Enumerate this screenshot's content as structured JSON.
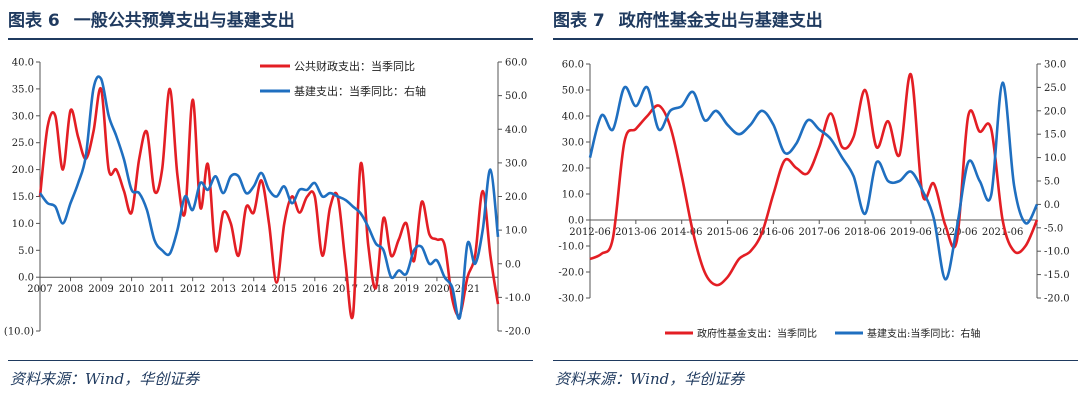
{
  "left": {
    "title_label": "图表 6",
    "title_text": "一般公共预算支出与基建支出",
    "source": "资料来源：Wind，华创证券"
  },
  "right": {
    "title_label": "图表 7",
    "title_text": "政府性基金支出与基建支出",
    "source": "资料来源：Wind，华创证券"
  },
  "chart_data": [
    {
      "type": "line",
      "title": "一般公共预算支出与基建支出",
      "legend_position": "top-right",
      "grid": false,
      "x_ticks": [
        "2007",
        "2008",
        "2009",
        "2010",
        "2011",
        "2012",
        "2013",
        "2014",
        "2015",
        "2016",
        "2017",
        "2018",
        "2019",
        "2020",
        "2021"
      ],
      "x_range": [
        2007.0,
        2022.0
      ],
      "y_left": {
        "range": [
          -10,
          40
        ],
        "ticks": [
          "(10.0)",
          "0.0",
          "5.0",
          "10.0",
          "15.0",
          "20.0",
          "25.0",
          "30.0",
          "35.0",
          "40.0"
        ],
        "tick_values": [
          -10,
          0,
          5,
          10,
          15,
          20,
          25,
          30,
          35,
          40
        ]
      },
      "y_right": {
        "range": [
          -20,
          60
        ],
        "ticks": [
          "-20.0",
          "-10.0",
          "0.0",
          "10.0",
          "20.0",
          "30.0",
          "40.0",
          "50.0",
          "60.0"
        ],
        "tick_values": [
          -20,
          -10,
          0,
          10,
          20,
          30,
          40,
          50,
          60
        ]
      },
      "colors": {
        "series1": "#e31e24",
        "series2": "#1f6fc0",
        "axis": "#555555"
      },
      "series": [
        {
          "name": "公共财政支出：当季同比",
          "axis": "left",
          "x": [
            2007.0,
            2007.25,
            2007.5,
            2007.75,
            2008.0,
            2008.25,
            2008.5,
            2008.75,
            2009.0,
            2009.25,
            2009.5,
            2009.75,
            2010.0,
            2010.25,
            2010.5,
            2010.75,
            2011.0,
            2011.25,
            2011.5,
            2011.75,
            2012.0,
            2012.25,
            2012.5,
            2012.75,
            2013.0,
            2013.25,
            2013.5,
            2013.75,
            2014.0,
            2014.25,
            2014.5,
            2014.75,
            2015.0,
            2015.25,
            2015.5,
            2015.75,
            2016.0,
            2016.25,
            2016.5,
            2016.75,
            2017.0,
            2017.25,
            2017.5,
            2017.75,
            2018.0,
            2018.25,
            2018.5,
            2018.75,
            2019.0,
            2019.25,
            2019.5,
            2019.75,
            2020.0,
            2020.25,
            2020.5,
            2020.75,
            2021.0,
            2021.25,
            2021.5,
            2021.75,
            2022.0
          ],
          "values": [
            15,
            28,
            30,
            20,
            31,
            26,
            22,
            27,
            35,
            20,
            20,
            16,
            12,
            22,
            27,
            16,
            20,
            35,
            19,
            12,
            33,
            13,
            21,
            5,
            12,
            10,
            4,
            13,
            12,
            18,
            10,
            -1,
            10,
            15,
            12,
            15,
            15,
            4,
            13,
            15,
            3,
            -7,
            21,
            6,
            -2,
            11,
            4,
            7,
            10,
            3,
            14,
            8,
            7,
            6,
            -4,
            -7,
            0,
            4,
            16,
            4,
            -5
          ]
        },
        {
          "name": "基建支出：当季同比：右轴",
          "axis": "right",
          "x": [
            2007.0,
            2007.25,
            2007.5,
            2007.75,
            2008.0,
            2008.25,
            2008.5,
            2008.75,
            2009.0,
            2009.25,
            2009.5,
            2009.75,
            2010.0,
            2010.25,
            2010.5,
            2010.75,
            2011.0,
            2011.25,
            2011.5,
            2011.75,
            2012.0,
            2012.25,
            2012.5,
            2012.75,
            2013.0,
            2013.25,
            2013.5,
            2013.75,
            2014.0,
            2014.25,
            2014.5,
            2014.75,
            2015.0,
            2015.25,
            2015.5,
            2015.75,
            2016.0,
            2016.25,
            2016.5,
            2016.75,
            2017.0,
            2017.25,
            2017.5,
            2017.75,
            2018.0,
            2018.25,
            2018.5,
            2018.75,
            2019.0,
            2019.25,
            2019.5,
            2019.75,
            2020.0,
            2020.25,
            2020.5,
            2020.75,
            2021.0,
            2021.25,
            2021.5,
            2021.75,
            2022.0
          ],
          "values": [
            21,
            18,
            17,
            12,
            18,
            24,
            32,
            52,
            55,
            44,
            38,
            31,
            22,
            21,
            16,
            7,
            4,
            3,
            10,
            20,
            16,
            24,
            22,
            26,
            21,
            26,
            26,
            21,
            23,
            27,
            22,
            20,
            23,
            18,
            22,
            22,
            24,
            20,
            21,
            20,
            19,
            17,
            15,
            11,
            6,
            4,
            -4,
            -2,
            -3,
            4,
            5,
            0,
            1,
            -4,
            -7,
            -16,
            6,
            0,
            10,
            28,
            8
          ]
        }
      ]
    },
    {
      "type": "line",
      "title": "政府性基金支出与基建支出",
      "legend_position": "bottom",
      "grid": false,
      "x_ticks": [
        "2012-06",
        "2013-06",
        "2014-06",
        "2015-06",
        "2016-06",
        "2017-06",
        "2018-06",
        "2019-06",
        "2020-06",
        "2021-06"
      ],
      "x_range": [
        2012.0,
        2021.75
      ],
      "y_left": {
        "range": [
          -30,
          60
        ],
        "ticks": [
          "-30.0",
          "-20.0",
          "-10.0",
          "0.0",
          "10.0",
          "20.0",
          "30.0",
          "40.0",
          "50.0",
          "60.0"
        ],
        "tick_values": [
          -30,
          -20,
          -10,
          0,
          10,
          20,
          30,
          40,
          50,
          60
        ]
      },
      "y_right": {
        "range": [
          -20,
          30
        ],
        "ticks": [
          "-20.0",
          "-15.0",
          "-10.0",
          "-5.0",
          "0.0",
          "5.0",
          "10.0",
          "15.0",
          "20.0",
          "25.0",
          "30.0"
        ],
        "tick_values": [
          -20,
          -15,
          -10,
          -5,
          0,
          5,
          10,
          15,
          20,
          25,
          30
        ]
      },
      "colors": {
        "series1": "#e31e24",
        "series2": "#1f6fc0",
        "axis": "#555555"
      },
      "series": [
        {
          "name": "政府性基金支出：当季同比",
          "axis": "left",
          "x": [
            2012.0,
            2012.25,
            2012.5,
            2012.75,
            2013.0,
            2013.25,
            2013.5,
            2013.75,
            2014.0,
            2014.25,
            2014.5,
            2014.75,
            2015.0,
            2015.25,
            2015.5,
            2015.75,
            2016.0,
            2016.25,
            2016.5,
            2016.75,
            2017.0,
            2017.25,
            2017.5,
            2017.75,
            2018.0,
            2018.25,
            2018.5,
            2018.75,
            2019.0,
            2019.25,
            2019.5,
            2019.75,
            2020.0,
            2020.25,
            2020.5,
            2020.75,
            2021.0,
            2021.25,
            2021.5,
            2021.75
          ],
          "values": [
            -15,
            -13,
            -7,
            30,
            35,
            40,
            44,
            36,
            17,
            -5,
            -20,
            -25,
            -22,
            -15,
            -12,
            -5,
            10,
            23,
            20,
            18,
            28,
            41,
            28,
            32,
            50,
            28,
            38,
            25,
            56,
            10,
            14,
            -2,
            -8,
            40,
            34,
            35,
            0,
            -12,
            -10,
            0
          ]
        },
        {
          "name": "基建支出:当季同比：右轴",
          "axis": "right",
          "x": [
            2012.0,
            2012.25,
            2012.5,
            2012.75,
            2013.0,
            2013.25,
            2013.5,
            2013.75,
            2014.0,
            2014.25,
            2014.5,
            2014.75,
            2015.0,
            2015.25,
            2015.5,
            2015.75,
            2016.0,
            2016.25,
            2016.5,
            2016.75,
            2017.0,
            2017.25,
            2017.5,
            2017.75,
            2018.0,
            2018.25,
            2018.5,
            2018.75,
            2019.0,
            2019.25,
            2019.5,
            2019.75,
            2020.0,
            2020.25,
            2020.5,
            2020.75,
            2021.0,
            2021.25,
            2021.5,
            2021.75
          ],
          "values": [
            10,
            19,
            16,
            25,
            21,
            25,
            16,
            20,
            21,
            24,
            18,
            20,
            17,
            15,
            17,
            20,
            17,
            11,
            13,
            18,
            16,
            14,
            10,
            6,
            -2,
            9,
            5,
            5,
            7,
            3,
            -3,
            -16,
            -5,
            9,
            5,
            2,
            26,
            4,
            -4,
            0
          ]
        }
      ]
    }
  ]
}
